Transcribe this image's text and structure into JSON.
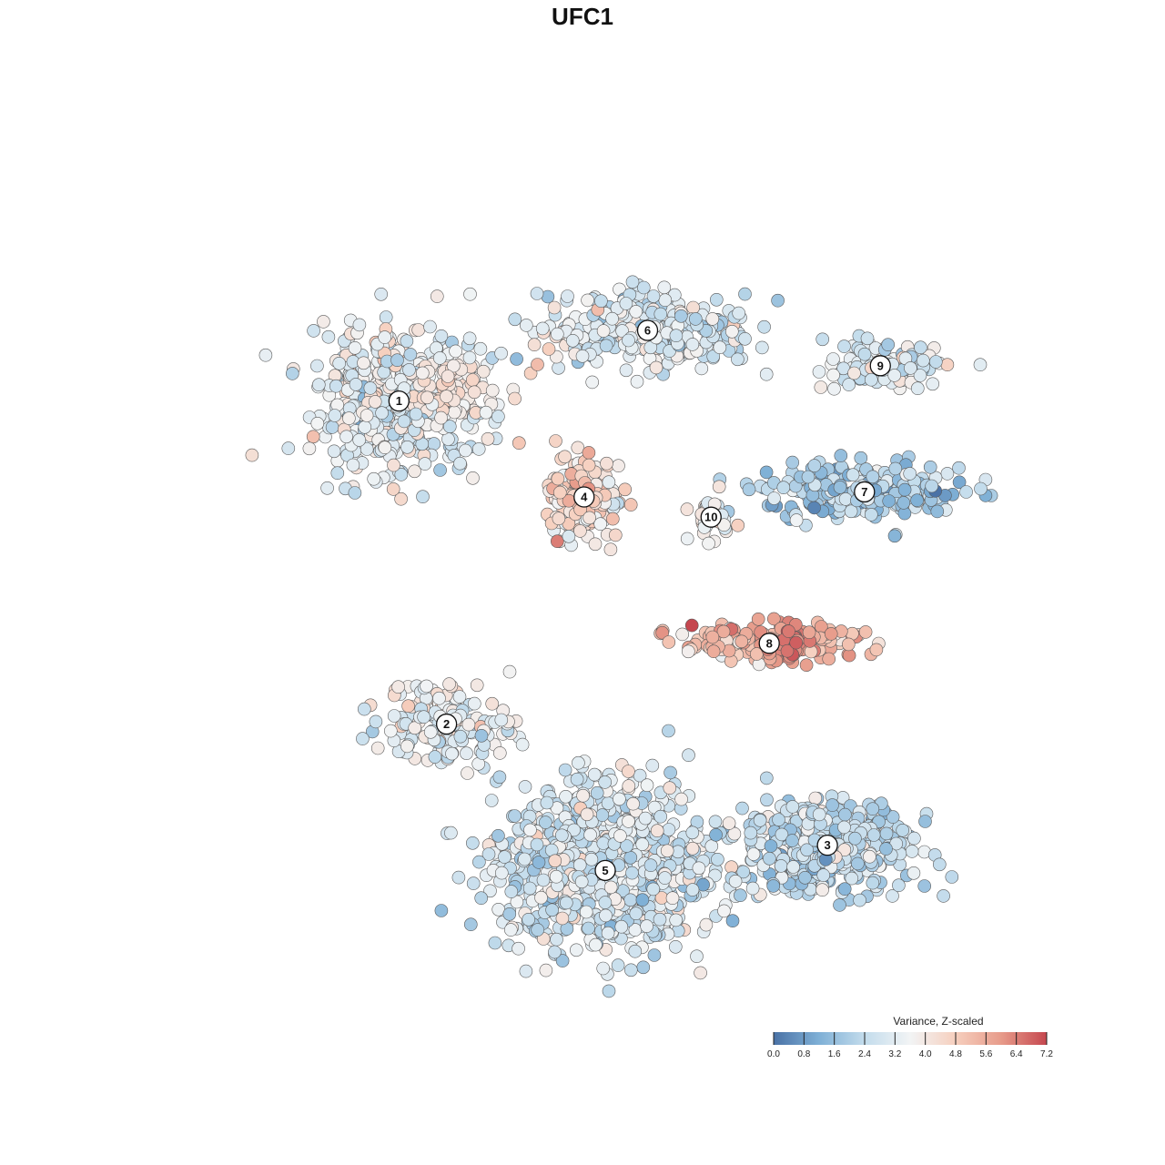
{
  "chart_data": {
    "type": "scatter",
    "title": "UFC1",
    "xlabel": "",
    "ylabel": "",
    "grid": false,
    "legend": {
      "title": "Variance, Z-scaled",
      "position": "bottom-right",
      "ticks": [
        "0.0",
        "0.8",
        "1.6",
        "2.4",
        "3.2",
        "4.0",
        "4.8",
        "5.6",
        "6.4",
        "7.2"
      ],
      "range": [
        0,
        7.2
      ],
      "colors": [
        "#4a72a6",
        "#7fb0d6",
        "#c3dcec",
        "#f2f4f5",
        "#f6cfbe",
        "#e79b8a",
        "#c5474f"
      ]
    },
    "clusters": [
      {
        "label": "1",
        "center": [
          -3.9,
          3.3
        ],
        "spread": [
          1.35,
          1.15
        ],
        "n": 520,
        "mean": 3.3,
        "hot_center": [
          -2.9,
          3.6
        ],
        "hot_radius": 0.9,
        "hot_mean": 4.6
      },
      {
        "label": "6",
        "center": [
          0.8,
          4.7
        ],
        "spread": [
          1.6,
          0.55
        ],
        "n": 330,
        "mean": 2.9,
        "hot_center": [
          -1.1,
          4.4
        ],
        "hot_radius": 0.6,
        "hot_mean": 4.7
      },
      {
        "label": "9",
        "center": [
          5.2,
          4.0
        ],
        "spread": [
          0.85,
          0.4
        ],
        "n": 110,
        "mean": 3.0
      },
      {
        "label": "7",
        "center": [
          4.9,
          1.5
        ],
        "spread": [
          1.5,
          0.45
        ],
        "n": 240,
        "mean": 2.0
      },
      {
        "label": "4",
        "center": [
          -0.4,
          1.4
        ],
        "spread": [
          0.55,
          0.6
        ],
        "n": 200,
        "mean": 4.2,
        "hot_center": [
          -0.4,
          1.4
        ],
        "hot_radius": 0.5,
        "hot_mean": 5.6
      },
      {
        "label": "10",
        "center": [
          2.0,
          1.0
        ],
        "spread": [
          0.3,
          0.35
        ],
        "n": 45,
        "mean": 3.5
      },
      {
        "label": "8",
        "center": [
          3.1,
          -1.5
        ],
        "spread": [
          1.35,
          0.3
        ],
        "n": 210,
        "mean": 5.3,
        "hot_center": [
          3.4,
          -1.4
        ],
        "hot_radius": 0.8,
        "hot_mean": 6.7
      },
      {
        "label": "2",
        "center": [
          -3.0,
          -3.1
        ],
        "spread": [
          1.0,
          0.7
        ],
        "n": 150,
        "mean": 3.4,
        "hot_center": [
          -3.0,
          -2.5
        ],
        "hot_radius": 0.5,
        "hot_mean": 4.3
      },
      {
        "label": "3",
        "center": [
          4.2,
          -5.5
        ],
        "spread": [
          1.25,
          0.75
        ],
        "n": 460,
        "mean": 2.5
      },
      {
        "label": "5",
        "center": [
          0.0,
          -6.0
        ],
        "spread": [
          1.6,
          1.35
        ],
        "n": 880,
        "mean": 2.9,
        "hot_center": [
          0.2,
          -3.7
        ],
        "hot_radius": 0.8,
        "hot_mean": 4.5
      }
    ],
    "xlim": [
      -8.0,
      8.0
    ],
    "ylim": [
      -8.5,
      8.0
    ]
  }
}
